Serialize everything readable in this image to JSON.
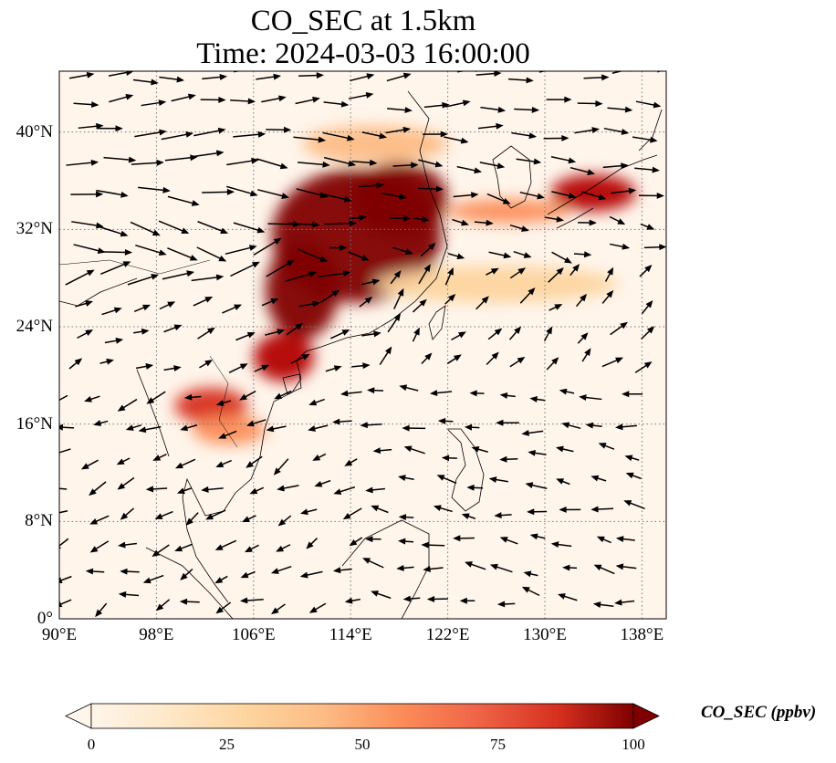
{
  "title": {
    "line1": "CO_SEC at 1.5km",
    "line2": "Time: 2024-03-03 16:00:00"
  },
  "map": {
    "lon_range": [
      90,
      140
    ],
    "lat_range": [
      0,
      45
    ],
    "lon_ticks": [
      "90°E",
      "98°E",
      "106°E",
      "114°E",
      "122°E",
      "130°E",
      "138°E"
    ],
    "lat_ticks": [
      "0°",
      "8°N",
      "16°N",
      "24°N",
      "32°N",
      "40°N"
    ],
    "gridlines": true
  },
  "colorbar": {
    "label": "CO_SEC (ppbv)",
    "ticks": [
      "0",
      "25",
      "50",
      "75",
      "100"
    ],
    "extend": "both",
    "colors": [
      "#fff5eb",
      "#fdd49e",
      "#fdbb84",
      "#fc8d59",
      "#ef6548",
      "#d7301f",
      "#b30000",
      "#7f0000"
    ]
  },
  "plumes": [
    {
      "lon": 114.5,
      "lat": 31.5,
      "rx": 7.0,
      "ry": 5.5,
      "value": 100
    },
    {
      "lon": 118.0,
      "lat": 34.5,
      "rx": 4.0,
      "ry": 3.0,
      "value": 100
    },
    {
      "lon": 110.0,
      "lat": 27.0,
      "rx": 3.0,
      "ry": 4.0,
      "value": 95
    },
    {
      "lon": 108.5,
      "lat": 21.5,
      "rx": 2.5,
      "ry": 2.0,
      "value": 85
    },
    {
      "lon": 102.5,
      "lat": 17.5,
      "rx": 3.0,
      "ry": 1.5,
      "value": 70
    },
    {
      "lon": 104.0,
      "lat": 15.5,
      "rx": 3.0,
      "ry": 1.2,
      "value": 45
    },
    {
      "lon": 134.0,
      "lat": 35.0,
      "rx": 3.5,
      "ry": 1.5,
      "value": 90
    },
    {
      "lon": 127.0,
      "lat": 33.5,
      "rx": 5.0,
      "ry": 1.0,
      "value": 40
    },
    {
      "lon": 116.0,
      "lat": 39.0,
      "rx": 6.0,
      "ry": 1.5,
      "value": 30
    },
    {
      "lon": 126.0,
      "lat": 27.5,
      "rx": 10.0,
      "ry": 1.5,
      "value": 15
    }
  ]
}
